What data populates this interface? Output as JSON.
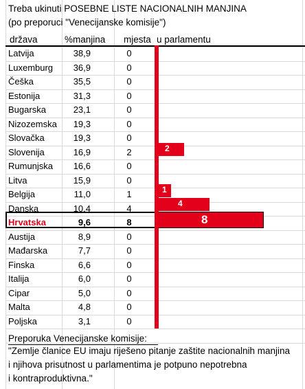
{
  "title": {
    "line1": "Treba ukinuti POSEBNE LISTE NACIONALNIH MANJINA",
    "line2": "(po preporuci \"Venecijanske komisije\")"
  },
  "headers": {
    "country": "država",
    "pct": "%manjina",
    "seats": "mjesta",
    "parliament": "u parlamentu"
  },
  "rows": [
    {
      "country": "Latvija",
      "pct": "38,9",
      "seats": "0"
    },
    {
      "country": "Luxemburg",
      "pct": "36,9",
      "seats": "0"
    },
    {
      "country": "Češka",
      "pct": "35,5",
      "seats": "0"
    },
    {
      "country": "Estonija",
      "pct": "31,3",
      "seats": "0"
    },
    {
      "country": "Bugarska",
      "pct": "23,1",
      "seats": "0"
    },
    {
      "country": "Nizozemska",
      "pct": "19,3",
      "seats": "0"
    },
    {
      "country": "Slovačka",
      "pct": "19,3",
      "seats": "0"
    },
    {
      "country": "Slovenija",
      "pct": "16,9",
      "seats": "2"
    },
    {
      "country": "Rumunjska",
      "pct": "16,6",
      "seats": "0"
    },
    {
      "country": "Litva",
      "pct": "15,9",
      "seats": "0"
    },
    {
      "country": "Belgija",
      "pct": "11,0",
      "seats": "1"
    },
    {
      "country": "Danska",
      "pct": "10,4",
      "seats": "4"
    },
    {
      "country": "Hrvatska",
      "pct": "9,6",
      "seats": "8"
    },
    {
      "country": "Austija",
      "pct": "8,9",
      "seats": "0"
    },
    {
      "country": "Mađarska",
      "pct": "7,7",
      "seats": "0"
    },
    {
      "country": "Finska",
      "pct": "6,6",
      "seats": "0"
    },
    {
      "country": "Italija",
      "pct": "6,0",
      "seats": "0"
    },
    {
      "country": "Cipar",
      "pct": "5,0",
      "seats": "0"
    },
    {
      "country": "Malta",
      "pct": "4,8",
      "seats": "0"
    },
    {
      "country": "Poljska",
      "pct": "3,1",
      "seats": "0"
    }
  ],
  "bars": [
    {
      "label": "2",
      "value": 2
    },
    {
      "label": "1",
      "value": 1
    },
    {
      "label": "4",
      "value": 4
    },
    {
      "label": "8",
      "value": 8
    }
  ],
  "recommendation": {
    "heading": "Preporuka Venecijanske komisije:",
    "line1": "\"Zemlje članice EU imaju riješeno pitanje zaštite nacionalnih manjina",
    "line2": "i njihova prisutnost u parlamentima je potpuno nepotrebna",
    "line3": "i kontraproduktivna.\""
  },
  "colors": {
    "accent": "#e3001b"
  }
}
